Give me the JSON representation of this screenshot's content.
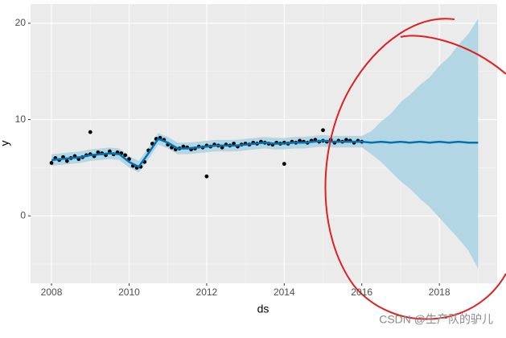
{
  "chart_data": {
    "type": "forecast",
    "x_label": "ds",
    "y_label": "y",
    "xlim": [
      2007.46,
      2019.49
    ],
    "xticks": [
      2008,
      2010,
      2012,
      2014,
      2016,
      2018
    ],
    "ylim": [
      -7,
      22
    ],
    "yticks": [
      0,
      10,
      20
    ],
    "grid": true,
    "points": {
      "color": "#000000",
      "x": [
        2008,
        2008.1,
        2008.2,
        2008.3,
        2008.4,
        2008.5,
        2008.6,
        2008.7,
        2008.8,
        2008.9,
        2009,
        2009.1,
        2009.2,
        2009.3,
        2009.4,
        2009.5,
        2009.6,
        2009.7,
        2009.8,
        2009.9,
        2010,
        2010.1,
        2010.2,
        2010.3,
        2010.4,
        2010.5,
        2010.6,
        2010.7,
        2010.8,
        2010.9,
        2011,
        2011.1,
        2011.2,
        2011.3,
        2011.4,
        2011.5,
        2011.6,
        2011.7,
        2011.8,
        2011.9,
        2012,
        2012.1,
        2012.2,
        2012.3,
        2012.4,
        2012.5,
        2012.6,
        2012.7,
        2012.8,
        2012.9,
        2013,
        2013.1,
        2013.2,
        2013.3,
        2013.4,
        2013.5,
        2013.6,
        2013.7,
        2013.8,
        2013.9,
        2014,
        2014.1,
        2014.2,
        2014.3,
        2014.4,
        2014.5,
        2014.6,
        2014.7,
        2014.8,
        2014.9,
        2015,
        2015.1,
        2015.2,
        2015.3,
        2015.4,
        2015.5,
        2015.6,
        2015.7,
        2015.8,
        2015.9,
        2016,
        2009,
        2012,
        2014,
        2015
      ],
      "y": [
        5.5,
        6.0,
        5.8,
        6.1,
        5.7,
        6.0,
        6.2,
        5.9,
        6.1,
        6.3,
        6.4,
        6.2,
        6.6,
        6.5,
        6.3,
        6.7,
        6.4,
        6.6,
        6.5,
        6.3,
        5.9,
        5.2,
        5.0,
        5.1,
        5.6,
        6.8,
        7.5,
        8.0,
        8.1,
        7.9,
        7.4,
        7.1,
        6.9,
        7.0,
        7.2,
        7.1,
        6.9,
        7.0,
        7.2,
        7.1,
        7.3,
        7.2,
        7.4,
        7.3,
        7.1,
        7.4,
        7.3,
        7.5,
        7.2,
        7.4,
        7.5,
        7.4,
        7.6,
        7.5,
        7.7,
        7.6,
        7.5,
        7.4,
        7.6,
        7.5,
        7.6,
        7.5,
        7.7,
        7.6,
        7.8,
        7.7,
        7.6,
        7.8,
        7.9,
        7.7,
        7.8,
        7.7,
        7.9,
        7.6,
        7.8,
        7.7,
        7.9,
        7.8,
        7.6,
        7.8,
        7.7,
        8.7,
        4.1,
        5.4,
        8.9
      ]
    },
    "forecast": {
      "color": "#0072B2",
      "band_color": "#b3d6e4",
      "x": [
        2008,
        2008.25,
        2008.5,
        2008.75,
        2009,
        2009.25,
        2009.5,
        2009.75,
        2010,
        2010.25,
        2010.5,
        2010.75,
        2011,
        2011.25,
        2011.5,
        2011.75,
        2012,
        2012.25,
        2012.5,
        2012.75,
        2013,
        2013.25,
        2013.5,
        2013.75,
        2014,
        2014.25,
        2014.5,
        2014.75,
        2015,
        2015.25,
        2015.5,
        2015.75,
        2016,
        2016.25,
        2016.5,
        2016.75,
        2017,
        2017.25,
        2017.5,
        2017.75,
        2018,
        2018.25,
        2018.5,
        2018.75,
        2019
      ],
      "yhat": [
        5.8,
        5.9,
        6.0,
        6.1,
        6.3,
        6.4,
        6.5,
        6.4,
        5.6,
        5.1,
        6.5,
        8.0,
        7.6,
        7.0,
        7.0,
        7.1,
        7.2,
        7.3,
        7.3,
        7.3,
        7.4,
        7.5,
        7.6,
        7.5,
        7.5,
        7.6,
        7.6,
        7.7,
        7.8,
        7.7,
        7.7,
        7.7,
        7.7,
        7.6,
        7.7,
        7.6,
        7.7,
        7.6,
        7.7,
        7.6,
        7.7,
        7.6,
        7.7,
        7.6,
        7.6
      ],
      "lower": [
        5.2,
        5.3,
        5.4,
        5.5,
        5.7,
        5.8,
        5.9,
        5.8,
        5.0,
        4.5,
        5.9,
        7.4,
        7.0,
        6.4,
        6.4,
        6.5,
        6.6,
        6.7,
        6.7,
        6.7,
        6.8,
        6.9,
        7.0,
        6.9,
        6.9,
        7.0,
        7.0,
        7.1,
        7.2,
        7.1,
        7.1,
        7.1,
        7.1,
        6.4,
        5.6,
        4.6,
        3.6,
        2.8,
        1.8,
        0.9,
        -0.2,
        -1.3,
        -2.4,
        -3.6,
        -5.5
      ],
      "upper": [
        6.4,
        6.5,
        6.6,
        6.7,
        6.9,
        7.0,
        7.1,
        7.0,
        6.2,
        5.7,
        7.1,
        8.6,
        8.2,
        7.6,
        7.6,
        7.7,
        7.8,
        7.9,
        7.9,
        7.9,
        8.0,
        8.1,
        8.2,
        8.1,
        8.1,
        8.2,
        8.2,
        8.3,
        8.4,
        8.3,
        8.3,
        8.3,
        8.3,
        8.8,
        9.8,
        10.6,
        11.8,
        12.6,
        13.6,
        14.4,
        15.6,
        16.5,
        17.8,
        18.9,
        20.5
      ]
    }
  },
  "watermark": "CSDN @生产队的驴儿"
}
